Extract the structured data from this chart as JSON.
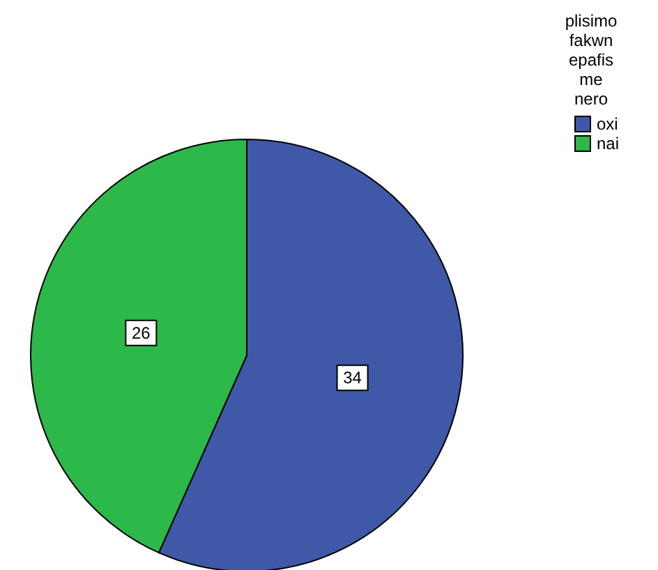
{
  "chart_data": {
    "type": "pie",
    "legend_title": "plisimo\nfakwn\nepafis\nme\nnero",
    "categories": [
      "oxi",
      "nai"
    ],
    "values": [
      34,
      26
    ],
    "colors": [
      "#3f58a8",
      "#2db84a"
    ],
    "data_labels": true,
    "legend": "top right"
  }
}
